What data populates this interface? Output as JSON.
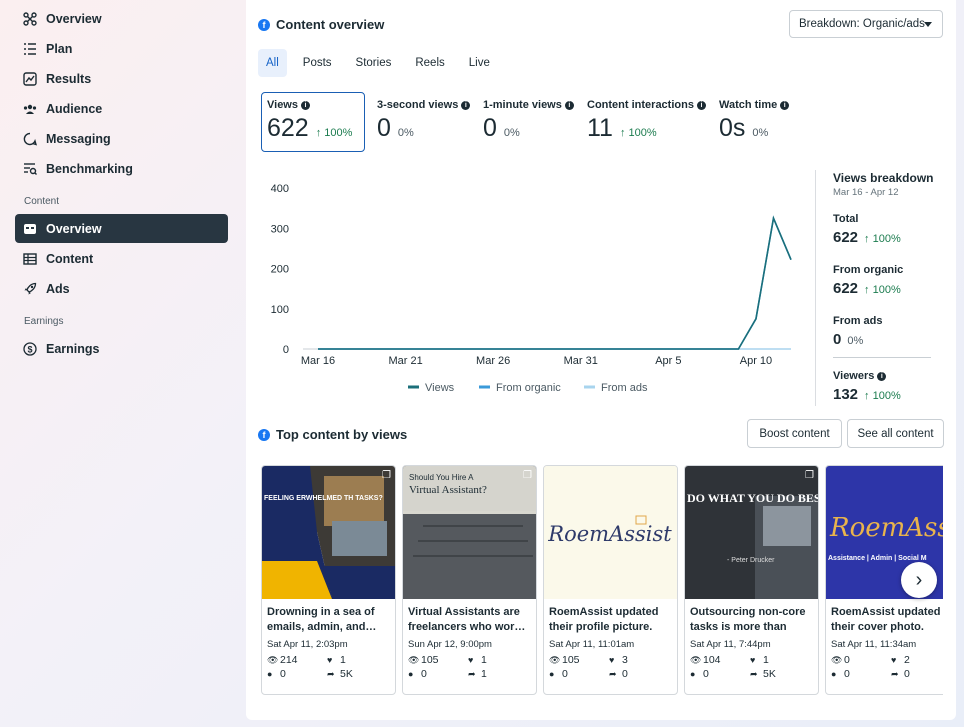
{
  "sidebar": {
    "items": [
      {
        "label": "Overview",
        "icon": "overview-icon"
      },
      {
        "label": "Plan",
        "icon": "plan-icon"
      },
      {
        "label": "Results",
        "icon": "results-icon"
      },
      {
        "label": "Audience",
        "icon": "audience-icon"
      },
      {
        "label": "Messaging",
        "icon": "messaging-icon"
      },
      {
        "label": "Benchmarking",
        "icon": "benchmarking-icon"
      }
    ],
    "content_section": "Content",
    "content_items": [
      {
        "label": "Overview",
        "icon": "content-overview-icon",
        "active": true
      },
      {
        "label": "Content",
        "icon": "content-table-icon"
      },
      {
        "label": "Ads",
        "icon": "rocket-icon"
      }
    ],
    "earnings_section": "Earnings",
    "earnings_items": [
      {
        "label": "Earnings",
        "icon": "dollar-icon"
      }
    ]
  },
  "overview": {
    "title": "Content overview",
    "breakdown": "Breakdown: Organic/ads",
    "tabs": [
      "All",
      "Posts",
      "Stories",
      "Reels",
      "Live"
    ],
    "metrics": [
      {
        "label": "Views",
        "value": "622",
        "change": "100%",
        "up": true
      },
      {
        "label": "3-second views",
        "value": "0",
        "change": "0%",
        "up": false
      },
      {
        "label": "1-minute views",
        "value": "0",
        "change": "0%",
        "up": false
      },
      {
        "label": "Content interactions",
        "value": "11",
        "change": "100%",
        "up": true
      },
      {
        "label": "Watch time",
        "value": "0s",
        "change": "0%",
        "up": false
      }
    ]
  },
  "chart_data": {
    "type": "line",
    "x_ticks": [
      "Mar 16",
      "Mar 21",
      "Mar 26",
      "Mar 31",
      "Apr 5",
      "Apr 10"
    ],
    "x": [
      "Mar 16",
      "Mar 17",
      "Mar 18",
      "Mar 19",
      "Mar 20",
      "Mar 21",
      "Mar 22",
      "Mar 23",
      "Mar 24",
      "Mar 25",
      "Mar 26",
      "Mar 27",
      "Mar 28",
      "Mar 29",
      "Mar 30",
      "Mar 31",
      "Apr 1",
      "Apr 2",
      "Apr 3",
      "Apr 4",
      "Apr 5",
      "Apr 6",
      "Apr 7",
      "Apr 8",
      "Apr 9",
      "Apr 10",
      "Apr 11",
      "Apr 12"
    ],
    "series": [
      {
        "name": "Views",
        "color": "#1b6f7a",
        "values": [
          0,
          0,
          0,
          0,
          0,
          0,
          0,
          0,
          0,
          0,
          0,
          0,
          0,
          0,
          0,
          0,
          0,
          0,
          0,
          0,
          0,
          0,
          0,
          0,
          0,
          75,
          325,
          222
        ]
      },
      {
        "name": "From organic",
        "color": "#3a9ad9",
        "values": [
          0,
          0,
          0,
          0,
          0,
          0,
          0,
          0,
          0,
          0,
          0,
          0,
          0,
          0,
          0,
          0,
          0,
          0,
          0,
          0,
          0,
          0,
          0,
          0,
          0,
          75,
          325,
          222
        ]
      },
      {
        "name": "From ads",
        "color": "#a8d4ee",
        "values": [
          0,
          0,
          0,
          0,
          0,
          0,
          0,
          0,
          0,
          0,
          0,
          0,
          0,
          0,
          0,
          0,
          0,
          0,
          0,
          0,
          0,
          0,
          0,
          0,
          0,
          0,
          0,
          0
        ]
      }
    ],
    "y_ticks": [
      0,
      100,
      200,
      300,
      400
    ],
    "ylim": [
      0,
      400
    ],
    "legend": "bottom",
    "grid": false
  },
  "breakdown": {
    "title": "Views breakdown",
    "range": "Mar 16 - Apr 12",
    "rows": [
      {
        "label": "Total",
        "value": "622",
        "change": "100%",
        "up": true
      },
      {
        "label": "From organic",
        "value": "622",
        "change": "100%",
        "up": true
      },
      {
        "label": "From ads",
        "value": "0",
        "change": "0%",
        "up": false
      },
      {
        "label": "Viewers",
        "value": "132",
        "change": "100%",
        "up": true
      }
    ]
  },
  "top": {
    "title": "Top content by views",
    "boost_label": "Boost content",
    "see_all_label": "See all content",
    "posts": [
      {
        "title": "Drowning in a sea of emails, admin, and…",
        "date": "Sat Apr 11, 2:03pm",
        "views": "214",
        "likes": "1",
        "comments": "0",
        "shares": "5K"
      },
      {
        "title": "Virtual Assistants are freelancers who wor…",
        "date": "Sun Apr 12, 9:00pm",
        "views": "105",
        "likes": "1",
        "comments": "0",
        "shares": "1"
      },
      {
        "title": "RoemAssist updated their profile picture.",
        "date": "Sat Apr 11, 11:01am",
        "views": "105",
        "likes": "3",
        "comments": "0",
        "shares": "0"
      },
      {
        "title": "Outsourcing non-core tasks is more than jus…",
        "date": "Sat Apr 11, 7:44pm",
        "views": "104",
        "likes": "1",
        "comments": "0",
        "shares": "5K"
      },
      {
        "title": "RoemAssist updated their cover photo.",
        "date": "Sat Apr 11, 11:34am",
        "views": "0",
        "likes": "2",
        "comments": "0",
        "shares": "0"
      }
    ],
    "thumb_text": {
      "p1_heading": "FEELING ERWHELMED TH TASKS?",
      "p2_heading": "Should You Hire A",
      "p2_heading2": "Virtual Assistant?",
      "p3_logo": "RoemAssist",
      "p4_heading": "DO WHAT YOU DO BEST AND OUTSOURCE THE REST\"",
      "p4_author": "- Peter Drucker",
      "p5_logo": "RoemAssi",
      "p5_tagline": "Assistance | Admin | Social M"
    }
  }
}
